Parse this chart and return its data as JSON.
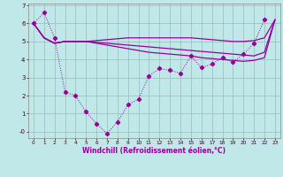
{
  "x": [
    0,
    1,
    2,
    3,
    4,
    5,
    6,
    7,
    8,
    9,
    10,
    11,
    12,
    13,
    14,
    15,
    16,
    17,
    18,
    19,
    20,
    21,
    22,
    23
  ],
  "line_main": [
    6.0,
    6.6,
    5.2,
    2.2,
    2.0,
    1.1,
    0.45,
    -0.1,
    0.55,
    1.5,
    1.8,
    3.1,
    3.5,
    3.4,
    3.25,
    4.2,
    3.55,
    3.75,
    4.1,
    3.85,
    4.3,
    4.9,
    6.2,
    null
  ],
  "line_smooth1": [
    6.0,
    5.2,
    4.9,
    5.0,
    5.0,
    5.0,
    5.05,
    5.1,
    5.15,
    5.2,
    5.2,
    5.2,
    5.2,
    5.2,
    5.2,
    5.2,
    5.15,
    5.1,
    5.05,
    5.0,
    5.0,
    5.05,
    5.2,
    6.2
  ],
  "line_smooth2": [
    6.0,
    5.2,
    4.9,
    5.0,
    5.0,
    5.0,
    4.95,
    4.9,
    4.85,
    4.8,
    4.75,
    4.7,
    4.65,
    4.6,
    4.55,
    4.5,
    4.45,
    4.4,
    4.35,
    4.3,
    4.25,
    4.2,
    4.4,
    6.2
  ],
  "line_smooth3": [
    6.0,
    5.2,
    4.9,
    5.0,
    5.0,
    5.0,
    4.9,
    4.8,
    4.7,
    4.6,
    4.5,
    4.4,
    4.35,
    4.3,
    4.25,
    4.2,
    4.1,
    4.05,
    4.0,
    3.95,
    3.9,
    3.95,
    4.1,
    6.2
  ],
  "color": "#990099",
  "bg_color": "#c0e8e8",
  "grid_color": "#99bbbb",
  "xlabel": "Windchill (Refroidissement éolien,°C)",
  "ylim": [
    -0.35,
    7.1
  ],
  "xlim": [
    -0.5,
    23.5
  ],
  "yticks": [
    0,
    1,
    2,
    3,
    4,
    5,
    6,
    7
  ],
  "ytick_labels": [
    "-0",
    "1",
    "2",
    "3",
    "4",
    "5",
    "6",
    "7"
  ],
  "xticks": [
    0,
    1,
    2,
    3,
    4,
    5,
    6,
    7,
    8,
    9,
    10,
    11,
    12,
    13,
    14,
    15,
    16,
    17,
    18,
    19,
    20,
    21,
    22,
    23
  ]
}
